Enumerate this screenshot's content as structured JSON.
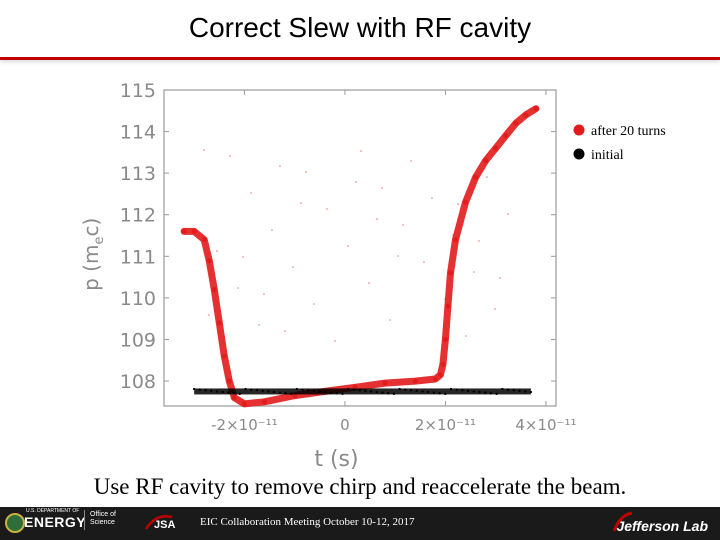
{
  "slide": {
    "title": "Correct Slew with RF cavity",
    "caption": "Use RF cavity to remove chirp and reaccelerate the beam."
  },
  "footer": {
    "doe_small": "U.S. DEPARTMENT OF",
    "doe_name": "ENERGY",
    "office_line1": "Office of",
    "office_line2": "Science",
    "jsa": "JSA",
    "meeting_text": "EIC Collaboration Meeting October 10-12, 2017",
    "lab_name": "Jefferson Lab"
  },
  "colors": {
    "accent_red": "#c00000",
    "after_series": "#e21b1b",
    "initial_series": "#000000",
    "footer_bg": "#1a1a1a"
  },
  "chart_data": {
    "type": "scatter",
    "title": "",
    "xlabel": "t  (s)",
    "ylabel": "p  (m c)",
    "ylabel_main": "p  (m",
    "ylabel_sub": "e",
    "ylabel_tail": "c)",
    "xlim": [
      -3.6e-11,
      4.2e-11
    ],
    "ylim": [
      107.4,
      115
    ],
    "x_ticks": [
      -2e-11,
      0,
      2e-11,
      4e-11
    ],
    "x_tick_labels": [
      "-2×10⁻¹¹",
      "0",
      "2×10⁻¹¹",
      "4×10⁻¹¹"
    ],
    "y_ticks": [
      108,
      109,
      110,
      111,
      112,
      113,
      114,
      115
    ],
    "y_tick_labels": [
      "108",
      "109",
      "110",
      "111",
      "112",
      "113",
      "114",
      "115"
    ],
    "legend_position": "top-right",
    "series": [
      {
        "name": "after 20 turns",
        "color": "#e21b1b",
        "x": [
          -3.2e-11,
          -3e-11,
          -2.8e-11,
          -2.7e-11,
          -2.6e-11,
          -2.5e-11,
          -2.4e-11,
          -2.3e-11,
          -2.2e-11,
          -2e-11,
          -1.6e-11,
          -1e-11,
          -4e-12,
          2e-12,
          8e-12,
          1.4e-11,
          1.8e-11,
          1.9e-11,
          1.95e-11,
          2e-11,
          2.05e-11,
          2.1e-11,
          2.2e-11,
          2.4e-11,
          2.6e-11,
          2.8e-11,
          3e-11,
          3.2e-11,
          3.4e-11,
          3.6e-11,
          3.8e-11
        ],
        "y": [
          111.6,
          111.6,
          111.4,
          110.9,
          110.2,
          109.4,
          108.6,
          108.0,
          107.6,
          107.45,
          107.5,
          107.65,
          107.75,
          107.85,
          107.95,
          108.0,
          108.05,
          108.15,
          108.4,
          109.0,
          109.8,
          110.6,
          111.4,
          112.3,
          112.9,
          113.3,
          113.6,
          113.9,
          114.2,
          114.4,
          114.55
        ]
      },
      {
        "name": "initial",
        "color": "#000000",
        "x": [
          -3e-11,
          3.7e-11
        ],
        "y": [
          107.75,
          107.75
        ]
      }
    ]
  }
}
